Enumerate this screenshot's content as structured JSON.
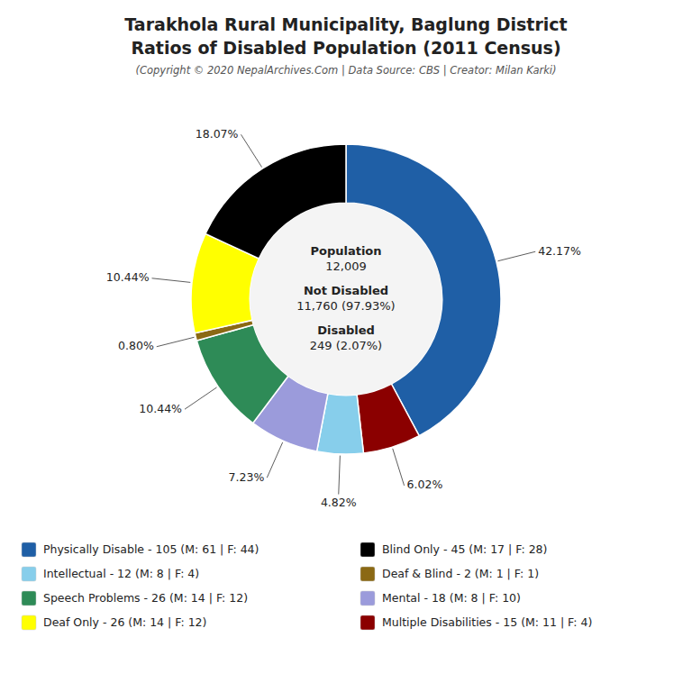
{
  "chart_data": {
    "type": "donut",
    "title": [
      "Tarakhola Rural Municipality, Baglung District",
      "Ratios of Disabled Population (2011 Census)"
    ],
    "subtitle": "(Copyright © 2020 NepalArchives.Com | Data Source: CBS | Creator: Milan Karki)",
    "categories": [
      "Physically Disable - 105 (M: 61 | F: 44)",
      "Multiple Disabilities - 15 (M: 11 | F: 4)",
      "Intellectual - 12 (M: 8 | F: 4)",
      "Mental - 18 (M: 8 | F: 10)",
      "Speech Problems - 26 (M: 14 | F: 12)",
      "Deaf & Blind - 2 (M: 1 | F: 1)",
      "Deaf Only - 26 (M: 14 | F: 12)",
      "Blind Only - 45 (M: 17 | F: 28)"
    ],
    "values": [
      42.17,
      6.02,
      4.82,
      7.23,
      10.44,
      0.8,
      10.44,
      18.07
    ],
    "value_labels": [
      "42.17%",
      "6.02%",
      "4.82%",
      "7.23%",
      "10.44%",
      "0.80%",
      "10.44%",
      "18.07%"
    ],
    "colors": [
      "#1f5fa6",
      "#8b0000",
      "#87ceeb",
      "#9b9bdb",
      "#2e8b57",
      "#8b6914",
      "#ffff00",
      "#000000"
    ],
    "data_labels": true,
    "annotations": [
      "Population",
      "12,009",
      "Not Disabled",
      "11,760 (97.93%)",
      "Disabled",
      "249 (2.07%)"
    ],
    "legend": "bottom"
  }
}
